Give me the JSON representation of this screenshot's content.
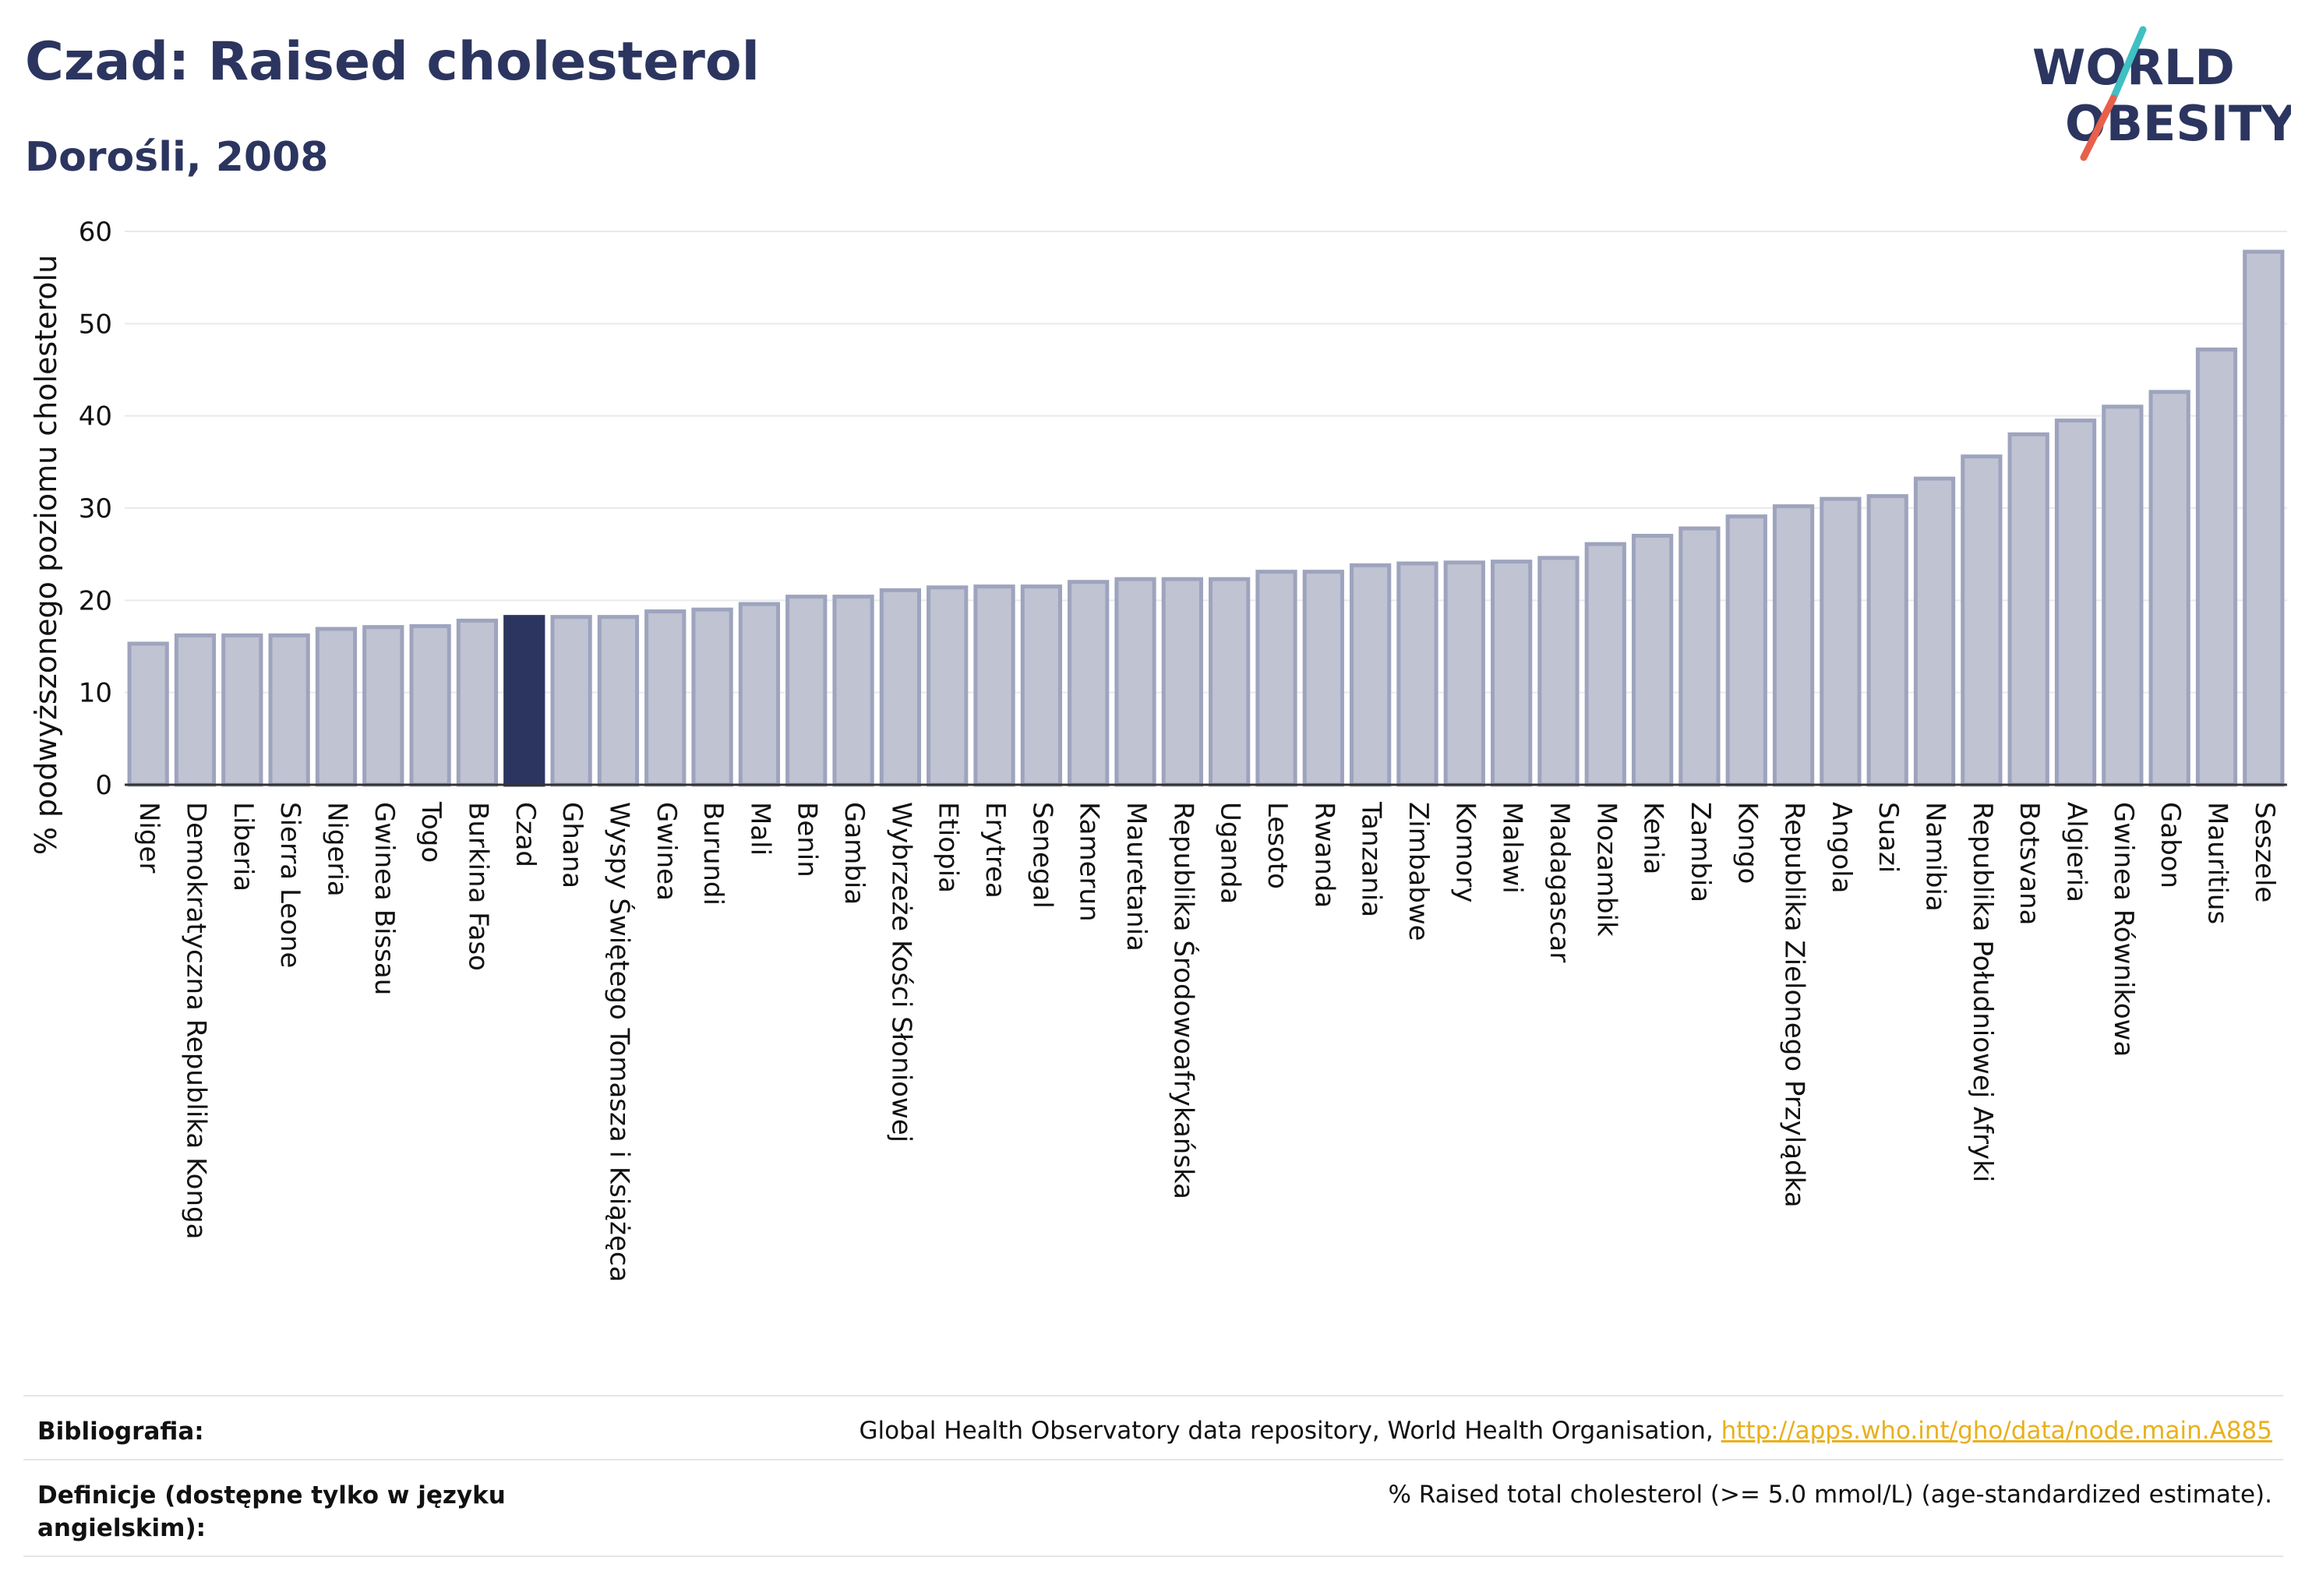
{
  "header": {
    "title": "Czad: Raised cholesterol",
    "subtitle": "Dorośli, 2008"
  },
  "logo": {
    "line1": "WORLD",
    "line2": "OBESITY",
    "accent_colors": [
      "#3fc0c3",
      "#e8604c"
    ]
  },
  "chart_data": {
    "type": "bar",
    "ylabel": "% podwyższonego poziomu cholesterolu",
    "ylim": [
      0,
      60
    ],
    "yticks": [
      0,
      10,
      20,
      30,
      40,
      50,
      60
    ],
    "grid": true,
    "highlight": "Czad",
    "colors": {
      "bar": "#bfc3d2",
      "bar_edge": "#9ea4bd",
      "highlight": "#2b355f"
    },
    "categories": [
      "Niger",
      "Demokratyczna Republika Konga",
      "Liberia",
      "Sierra Leone",
      "Nigeria",
      "Gwinea Bissau",
      "Togo",
      "Burkina Faso",
      "Czad",
      "Ghana",
      "Wyspy Świętego Tomasza i Książęca",
      "Gwinea",
      "Burundi",
      "Mali",
      "Benin",
      "Gambia",
      "Wybrzeże Kości Słoniowej",
      "Etiopia",
      "Erytrea",
      "Senegal",
      "Kamerun",
      "Mauretania",
      "Republika Środowoafrykańska",
      "Uganda",
      "Lesoto",
      "Rwanda",
      "Tanzania",
      "Zimbabwe",
      "Komory",
      "Malawi",
      "Madagascar",
      "Mozambik",
      "Kenia",
      "Zambia",
      "Kongo",
      "Republika Zielonego Przylądka",
      "Angola",
      "Suazi",
      "Namibia",
      "Republika Południowej Afryki",
      "Botsvana",
      "Algieria",
      "Gwinea Równikowa",
      "Gabon",
      "Mauritius",
      "Seszele"
    ],
    "values": [
      15.3,
      16.2,
      16.2,
      16.2,
      16.9,
      17.1,
      17.2,
      17.8,
      18.2,
      18.2,
      18.2,
      18.8,
      19.0,
      19.6,
      20.4,
      20.4,
      21.1,
      21.4,
      21.5,
      21.5,
      22.0,
      22.3,
      22.3,
      22.3,
      23.1,
      23.1,
      23.8,
      24.0,
      24.1,
      24.2,
      24.6,
      26.1,
      27.0,
      27.8,
      29.1,
      30.2,
      31.0,
      31.3,
      33.2,
      35.6,
      38.0,
      39.5,
      41.0,
      42.6,
      47.2,
      57.8
    ]
  },
  "footer": {
    "bibliography_label": "Bibliografia:",
    "bibliography_text": "Global Health Observatory data repository, World Health Organisation, ",
    "bibliography_link": "http://apps.who.int/gho/data/node.main.A885",
    "definitions_label": "Definicje (dostępne tylko w języku angielskim):",
    "definitions_text": "% Raised total cholesterol (>= 5.0 mmol/L) (age-standardized estimate)."
  }
}
